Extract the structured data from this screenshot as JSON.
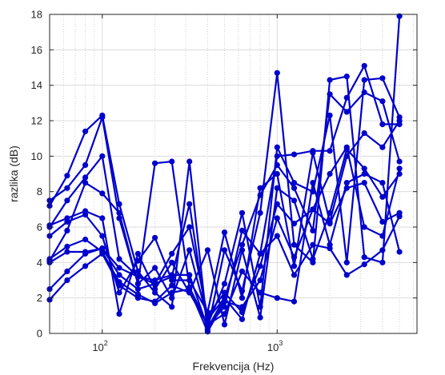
{
  "chart_data": {
    "type": "line",
    "xlabel": "Frekvencija (Hz)",
    "ylabel": "razlika (dB)",
    "xscale": "log",
    "xlim": [
      50,
      6300
    ],
    "ylim": [
      0,
      18
    ],
    "grid": "on (major solid, minor dotted on log axis)",
    "x_tick_labels": [
      "10",
      "2",
      "10",
      "3"
    ],
    "x_tick_values": [
      100,
      1000
    ],
    "y_tick_labels": [
      "0",
      "2",
      "4",
      "6",
      "8",
      "10",
      "12",
      "14",
      "16",
      "18"
    ],
    "y_tick_values": [
      0,
      2,
      4,
      6,
      8,
      10,
      12,
      14,
      16,
      18
    ],
    "series_color": "#0000cc",
    "x": [
      50,
      63,
      80,
      100,
      125,
      160,
      200,
      250,
      315,
      400,
      500,
      630,
      800,
      1000,
      1250,
      1600,
      2000,
      2500,
      3150,
      4000,
      5000
    ],
    "series": [
      {
        "values": [
          7.2,
          8.9,
          11.4,
          12.3,
          7.3,
          3.5,
          2.3,
          1.5,
          9.7,
          0.2,
          4.7,
          2.4,
          6.8,
          14.7,
          5.0,
          4.0,
          14.3,
          14.5,
          4.3,
          4.0,
          17.9
        ]
      },
      {
        "values": [
          7.5,
          8.2,
          9.5,
          12.2,
          6.5,
          2.8,
          9.6,
          9.7,
          2.6,
          0.5,
          2.8,
          6.8,
          1.5,
          10.5,
          8.5,
          8.0,
          12.3,
          4.0,
          14.3,
          14.4,
          12.2
        ]
      },
      {
        "values": [
          6.0,
          7.5,
          8.8,
          10.0,
          4.2,
          3.2,
          2.8,
          3.2,
          7.3,
          0.4,
          1.5,
          5.8,
          4.5,
          10.0,
          10.1,
          10.3,
          10.3,
          13.3,
          15.1,
          11.8,
          11.8
        ]
      },
      {
        "values": [
          4.1,
          5.8,
          8.5,
          7.9,
          6.8,
          2.8,
          3.7,
          2.0,
          4.7,
          0.8,
          2.0,
          5.0,
          7.8,
          9.5,
          8.2,
          5.8,
          13.5,
          12.5,
          13.6,
          13.1,
          9.7
        ]
      },
      {
        "values": [
          6.1,
          6.5,
          6.9,
          6.5,
          1.1,
          4.5,
          2.5,
          4.0,
          2.3,
          4.7,
          0.5,
          4.7,
          0.9,
          8.2,
          7.5,
          4.2,
          6.8,
          10.4,
          9.3,
          7.7,
          9.0
        ]
      },
      {
        "values": [
          5.5,
          6.3,
          6.7,
          5.5,
          2.3,
          4.1,
          5.4,
          3.0,
          3.0,
          1.2,
          5.7,
          2.0,
          8.2,
          9.0,
          3.8,
          10.2,
          6.3,
          10.0,
          11.3,
          10.5,
          12.0
        ]
      },
      {
        "values": [
          2.5,
          3.5,
          4.5,
          4.8,
          3.3,
          2.5,
          2.8,
          4.5,
          6.0,
          1.0,
          2.3,
          1.2,
          3.8,
          7.3,
          6.2,
          7.0,
          6.2,
          8.2,
          8.5,
          6.3,
          6.8
        ]
      },
      {
        "values": [
          1.9,
          3.0,
          3.8,
          4.5,
          2.7,
          2.0,
          1.8,
          2.7,
          2.3,
          0.5,
          1.1,
          3.5,
          2.3,
          2.0,
          1.8,
          8.5,
          5.0,
          8.5,
          9.0,
          8.5,
          4.6
        ]
      },
      {
        "values": [
          4.0,
          4.6,
          4.6,
          4.8,
          3.7,
          3.2,
          3.0,
          3.3,
          3.3,
          0.3,
          2.0,
          0.8,
          4.5,
          5.5,
          3.3,
          5.0,
          4.8,
          3.3,
          3.9,
          4.7,
          6.6
        ]
      },
      {
        "values": [
          4.2,
          4.9,
          5.3,
          4.6,
          2.9,
          2.2,
          1.7,
          2.3,
          2.5,
          0.1,
          1.8,
          1.5,
          3.0,
          6.5,
          4.3,
          7.0,
          9.0,
          10.5,
          6.0,
          5.5,
          9.3
        ]
      }
    ]
  }
}
